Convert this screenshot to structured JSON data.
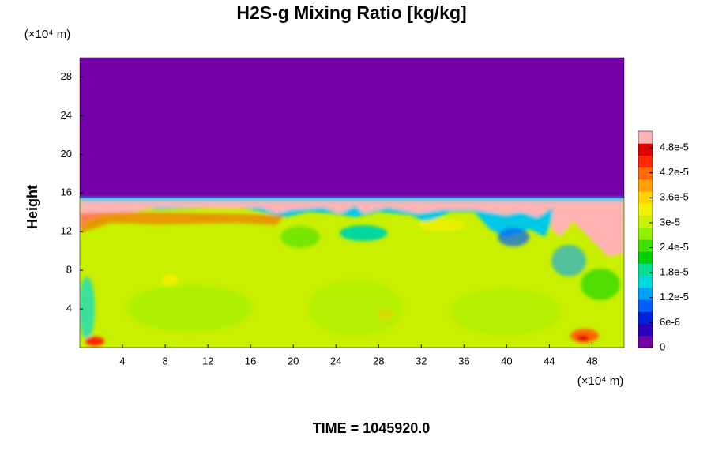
{
  "chart_data": {
    "type": "heatmap",
    "title": "H2S-g Mixing Ratio [kg/kg]",
    "y_label": "Height",
    "x_unit_label": "(×10⁴ m)",
    "y_unit_label": "(×10⁴ m)",
    "footer": "TIME = 1045920.0",
    "xlim": [
      0,
      51
    ],
    "xticks": [
      4,
      8,
      12,
      16,
      20,
      24,
      28,
      32,
      36,
      40,
      44,
      48
    ],
    "ylim": [
      0,
      30
    ],
    "yticks": [
      4,
      8,
      12,
      16,
      20,
      24,
      28
    ],
    "colorbar": {
      "lim": [
        0,
        5.2e-05
      ],
      "ticks": [
        0,
        {
          "value": 6e-06,
          "label": "6e-6"
        },
        {
          "value": 1.2e-05,
          "label": "1.2e-5"
        },
        {
          "value": 1.8e-05,
          "label": "1.8e-5"
        },
        {
          "value": 2.4e-05,
          "label": "2.4e-5"
        },
        {
          "value": 3e-05,
          "label": "3e-5"
        },
        {
          "value": 3.6e-05,
          "label": "3.6e-5"
        },
        {
          "value": 4.2e-05,
          "label": "4.2e-5"
        },
        {
          "value": 4.8e-05,
          "label": "4.8e-5"
        }
      ],
      "colors": [
        "#7300a8",
        "#2800c0",
        "#0020e0",
        "#0060ff",
        "#00a0ff",
        "#00d8e0",
        "#00e090",
        "#00d000",
        "#40e000",
        "#90f000",
        "#c8f000",
        "#f0f000",
        "#ffd200",
        "#ffa000",
        "#ff6a00",
        "#ff2800",
        "#e00000",
        "#ffb4b4"
      ]
    }
  }
}
